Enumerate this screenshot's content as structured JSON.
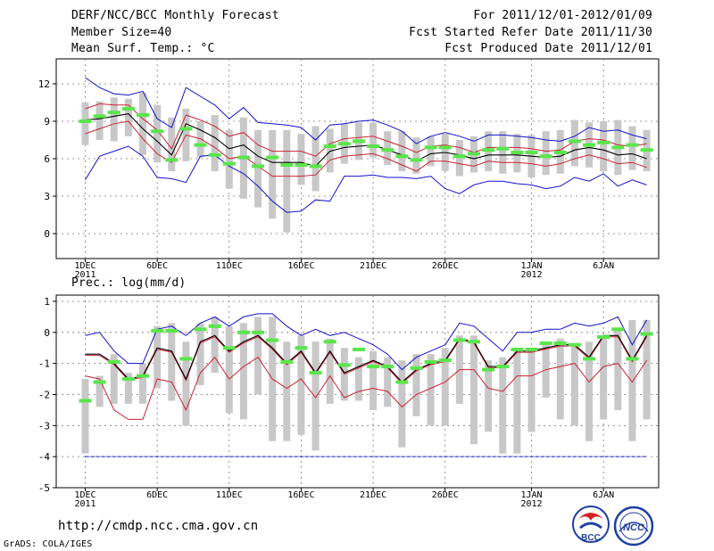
{
  "header": {
    "title": "DERF/NCC/BCC Monthly Forecast",
    "member_size": "Member Size=40",
    "var1": "Mean Surf. Temp.: °C",
    "period": "For 2011/12/01-2012/01/09",
    "started": "Fcst Started Refer Date 2011/11/30",
    "produced": "Fcst Produced Date 2011/12/01"
  },
  "footer": {
    "url": "http://cmdp.ncc.cma.gov.cn",
    "grads": "GrADS: COLA/IGES",
    "logo_text": "BCC",
    "logo2_text": "NCC"
  },
  "colors": {
    "grey_bar": "#c8c8c8",
    "median": "#59e64b",
    "mean": "#000000",
    "spread": "#cc2233",
    "extreme": "#1111cc"
  },
  "chart_data": [
    {
      "type": "line",
      "title": "Mean Surf. Temp.: °C",
      "days": 40,
      "ylim": [
        -2,
        14
      ],
      "yticks": [
        0,
        3,
        6,
        9,
        12
      ],
      "xtick_days": [
        1,
        6,
        11,
        16,
        21,
        26,
        32,
        37
      ],
      "xtick_labels": [
        "1DEC",
        "6DEC",
        "11DEC",
        "16DEC",
        "21DEC",
        "26DEC",
        "1JAN",
        "6JAN"
      ],
      "xtick_years": [
        "2011",
        "",
        "",
        "",
        "",
        "",
        "2012",
        ""
      ],
      "series": [
        {
          "name": "max",
          "values": [
            12.5,
            11.7,
            11.2,
            11.1,
            11.4,
            9.2,
            8.5,
            11.7,
            11.0,
            10.3,
            9.2,
            10.1,
            8.9,
            8.8,
            8.7,
            8.5,
            7.5,
            8.7,
            8.8,
            9.0,
            9.1,
            8.7,
            8.2,
            7.2,
            7.8,
            8.1,
            7.8,
            7.4,
            7.9,
            7.9,
            7.8,
            7.7,
            7.5,
            7.4,
            7.8,
            8.5,
            8.2,
            8.3,
            7.9,
            7.6
          ]
        },
        {
          "name": "mean_plus_sd",
          "values": [
            10.0,
            10.4,
            10.3,
            10.3,
            9.2,
            8.3,
            6.8,
            9.5,
            9.1,
            8.6,
            7.8,
            8.1,
            7.1,
            6.6,
            6.6,
            6.6,
            6.2,
            7.2,
            7.6,
            7.7,
            7.8,
            7.4,
            7.0,
            6.5,
            7.0,
            7.1,
            6.9,
            6.5,
            6.9,
            6.9,
            6.9,
            6.8,
            6.6,
            6.7,
            7.4,
            7.6,
            7.5,
            7.1,
            7.0,
            7.2
          ]
        },
        {
          "name": "mean",
          "values": [
            9.1,
            9.2,
            9.4,
            9.6,
            8.4,
            7.4,
            6.3,
            8.8,
            8.3,
            7.7,
            6.8,
            7.1,
            6.2,
            5.7,
            5.7,
            5.7,
            5.4,
            6.6,
            6.9,
            7.0,
            7.1,
            6.7,
            6.3,
            5.8,
            6.4,
            6.5,
            6.3,
            6.0,
            6.3,
            6.3,
            6.3,
            6.2,
            6.1,
            6.2,
            6.7,
            6.9,
            6.7,
            6.3,
            6.4,
            6.0
          ]
        },
        {
          "name": "mean_minus_sd",
          "values": [
            8.0,
            8.4,
            8.8,
            9.0,
            7.6,
            6.4,
            5.7,
            7.9,
            7.6,
            6.9,
            6.0,
            6.2,
            5.4,
            4.6,
            4.6,
            4.6,
            4.7,
            5.9,
            6.2,
            6.3,
            6.4,
            6.0,
            5.5,
            5.0,
            5.8,
            5.8,
            5.6,
            5.4,
            5.8,
            5.7,
            5.7,
            5.6,
            5.4,
            5.6,
            6.0,
            6.3,
            6.0,
            5.6,
            5.7,
            5.3
          ]
        },
        {
          "name": "min",
          "values": [
            4.3,
            6.2,
            6.6,
            7.0,
            6.2,
            4.5,
            4.4,
            4.1,
            6.2,
            6.3,
            5.4,
            4.8,
            3.8,
            2.6,
            1.7,
            1.8,
            2.7,
            2.6,
            4.6,
            4.6,
            4.7,
            4.5,
            4.5,
            4.4,
            4.6,
            3.6,
            3.2,
            3.9,
            4.2,
            4.2,
            4.0,
            3.9,
            3.6,
            3.8,
            4.5,
            4.2,
            4.8,
            3.8,
            4.3,
            3.9
          ]
        },
        {
          "name": "box_low",
          "values": [
            7.1,
            7.5,
            7.4,
            7.8,
            6.3,
            5.7,
            5.0,
            5.8,
            6.1,
            5.0,
            3.6,
            2.8,
            2.1,
            1.2,
            0.1,
            3.9,
            3.4,
            4.9,
            5.6,
            5.9,
            6.1,
            5.5,
            5.0,
            4.8,
            5.4,
            5.0,
            4.6,
            4.9,
            5.0,
            4.8,
            4.9,
            4.5,
            4.7,
            4.8,
            5.4,
            5.3,
            5.0,
            4.7,
            5.1,
            5.0
          ]
        },
        {
          "name": "box_high",
          "values": [
            10.5,
            10.6,
            10.9,
            10.8,
            11.3,
            10.3,
            9.3,
            10.0,
            9.0,
            9.5,
            8.3,
            9.3,
            8.3,
            8.3,
            8.3,
            8.0,
            8.6,
            8.4,
            8.8,
            8.9,
            8.9,
            8.2,
            8.2,
            7.7,
            7.8,
            8.0,
            7.5,
            7.8,
            8.2,
            8.2,
            8.0,
            7.9,
            8.2,
            8.3,
            9.1,
            8.9,
            9.0,
            9.1,
            8.6,
            8.3
          ]
        },
        {
          "name": "median",
          "values": [
            9.0,
            9.4,
            9.7,
            10.0,
            9.5,
            8.2,
            5.9,
            8.4,
            7.1,
            6.3,
            5.6,
            6.1,
            5.4,
            6.1,
            5.5,
            5.5,
            5.4,
            7.0,
            7.2,
            7.4,
            7.0,
            6.7,
            6.2,
            5.9,
            6.9,
            6.9,
            6.2,
            6.4,
            6.7,
            6.8,
            6.5,
            6.5,
            6.2,
            6.5,
            7.4,
            7.1,
            7.3,
            6.9,
            7.1,
            6.7
          ]
        }
      ]
    },
    {
      "type": "line",
      "title": "Prec.: log(mm/d)",
      "days": 40,
      "ylim": [
        -5,
        1.2
      ],
      "yticks": [
        -5,
        -4,
        -3,
        -2,
        -1,
        0,
        1
      ],
      "xtick_days": [
        1,
        6,
        11,
        16,
        21,
        26,
        32,
        37
      ],
      "xtick_labels": [
        "1DEC",
        "6DEC",
        "11DEC",
        "16DEC",
        "21DEC",
        "26DEC",
        "1JAN",
        "6JAN"
      ],
      "xtick_years": [
        "2011",
        "",
        "",
        "",
        "",
        "",
        "2012",
        ""
      ],
      "reference_line": -4,
      "series": [
        {
          "name": "max",
          "values": [
            -0.1,
            0.0,
            -0.6,
            -1.0,
            -1.0,
            0.1,
            0.2,
            -0.1,
            0.3,
            0.5,
            0.2,
            0.5,
            0.6,
            0.6,
            0.2,
            -0.1,
            0.1,
            -0.1,
            0.0,
            -0.2,
            -0.4,
            -0.7,
            -1.2,
            -0.8,
            -0.6,
            -0.4,
            0.3,
            0.2,
            -0.2,
            -0.6,
            0.0,
            0.0,
            0.1,
            0.1,
            0.3,
            0.2,
            0.3,
            0.5,
            -0.4,
            0.4
          ]
        },
        {
          "name": "mean",
          "values": [
            -0.7,
            -0.7,
            -1.0,
            -1.5,
            -1.4,
            -0.5,
            -0.6,
            -1.5,
            -0.3,
            -0.1,
            -0.6,
            -0.3,
            -0.1,
            -0.5,
            -1.0,
            -0.6,
            -1.3,
            -0.6,
            -1.3,
            -1.1,
            -0.9,
            -1.1,
            -1.6,
            -1.2,
            -1.0,
            -0.9,
            -0.2,
            -0.3,
            -1.1,
            -1.1,
            -0.6,
            -0.6,
            -0.5,
            -0.4,
            -0.4,
            -0.8,
            -0.1,
            -0.1,
            -0.9,
            -0.1
          ]
        },
        {
          "name": "mean_minus_sd",
          "values": [
            -1.4,
            -1.5,
            -2.5,
            -2.8,
            -2.8,
            -1.5,
            -1.6,
            -2.5,
            -1.3,
            -0.8,
            -1.5,
            -1.1,
            -0.8,
            -1.5,
            -1.8,
            -1.5,
            -2.1,
            -1.4,
            -2.1,
            -1.9,
            -1.8,
            -1.9,
            -2.4,
            -2.0,
            -1.8,
            -1.6,
            -1.2,
            -1.2,
            -1.8,
            -1.9,
            -1.4,
            -1.4,
            -1.2,
            -1.1,
            -1.0,
            -1.6,
            -1.1,
            -1.0,
            -1.6,
            -0.9
          ]
        },
        {
          "name": "box_low",
          "values": [
            -3.9,
            -2.4,
            -2.3,
            -2.3,
            -2.3,
            -1.8,
            -2.2,
            -3.0,
            -1.7,
            -1.3,
            -2.6,
            -2.8,
            -2.0,
            -3.5,
            -3.5,
            -3.3,
            -3.8,
            -2.3,
            -2.2,
            -2.2,
            -2.5,
            -2.4,
            -3.7,
            -2.7,
            -3.0,
            -3.0,
            -2.3,
            -3.6,
            -3.2,
            -3.9,
            -3.9,
            -3.2,
            -2.1,
            -2.8,
            -3.0,
            -3.5,
            -2.8,
            -2.5,
            -3.5,
            -2.8
          ]
        },
        {
          "name": "box_high",
          "values": [
            -1.5,
            -1.4,
            -0.7,
            -1.3,
            -1.0,
            0.2,
            0.3,
            -0.3,
            0.3,
            0.5,
            0.2,
            0.3,
            0.5,
            0.5,
            -0.3,
            -0.1,
            -0.3,
            -0.2,
            -0.5,
            -0.8,
            -0.6,
            -0.8,
            -0.9,
            -0.7,
            -0.7,
            -0.5,
            -0.1,
            -0.1,
            -0.9,
            -0.8,
            -0.5,
            -0.5,
            -0.3,
            -0.2,
            -0.4,
            -0.3,
            -0.1,
            0.1,
            0.4,
            0.4
          ]
        },
        {
          "name": "median",
          "values": [
            -2.2,
            -1.6,
            -0.95,
            -1.5,
            -1.4,
            0.05,
            0.05,
            -0.85,
            0.1,
            0.2,
            -0.5,
            0.0,
            0.0,
            -0.25,
            -0.95,
            -0.5,
            -1.3,
            -0.3,
            -1.05,
            -0.55,
            -1.1,
            -1.1,
            -1.6,
            -1.15,
            -0.95,
            -0.9,
            -0.25,
            -0.3,
            -1.2,
            -1.1,
            -0.55,
            -0.55,
            -0.35,
            -0.35,
            -0.4,
            -0.85,
            -0.15,
            0.1,
            -0.85,
            -0.05
          ]
        }
      ]
    }
  ]
}
